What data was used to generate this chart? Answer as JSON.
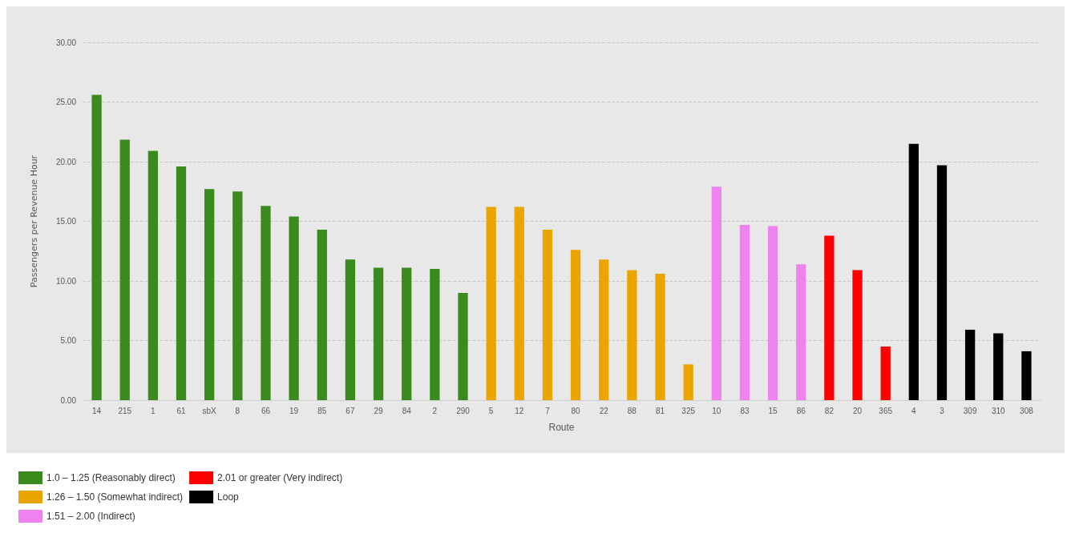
{
  "chart_data": {
    "type": "bar",
    "xlabel": "Route",
    "ylabel": "Passengers per Revenue Hour",
    "categories": [
      "14",
      "215",
      "1",
      "61",
      "sbX",
      "8",
      "66",
      "19",
      "85",
      "67",
      "29",
      "84",
      "2",
      "290",
      "5",
      "12",
      "7",
      "80",
      "22",
      "88",
      "81",
      "325",
      "10",
      "83",
      "15",
      "86",
      "82",
      "20",
      "365",
      "4",
      "3",
      "309",
      "310",
      "308"
    ],
    "series": [
      {
        "name": "1.0 – 1.25 (Reasonably direct)",
        "color": "#3a8a1e",
        "values": [
          25.6,
          21.85,
          20.9,
          19.6,
          17.7,
          17.5,
          16.3,
          15.4,
          14.3,
          11.8,
          11.1,
          11.1,
          11.0,
          9.0,
          null,
          null,
          null,
          null,
          null,
          null,
          null,
          null,
          null,
          null,
          null,
          null,
          null,
          null,
          null,
          null,
          null,
          null,
          null,
          null
        ]
      },
      {
        "name": "1.26 – 1.50 (Somewhat indirect)",
        "color": "#eaa500",
        "values": [
          null,
          null,
          null,
          null,
          null,
          null,
          null,
          null,
          null,
          null,
          null,
          null,
          null,
          null,
          16.2,
          16.2,
          14.3,
          12.6,
          11.8,
          10.9,
          10.6,
          3.0,
          null,
          null,
          null,
          null,
          null,
          null,
          null,
          null,
          null,
          null,
          null,
          null
        ]
      },
      {
        "name": "1.51 – 2.00 (Indirect)",
        "color": "#ee82ee",
        "values": [
          null,
          null,
          null,
          null,
          null,
          null,
          null,
          null,
          null,
          null,
          null,
          null,
          null,
          null,
          null,
          null,
          null,
          null,
          null,
          null,
          null,
          null,
          17.9,
          14.7,
          14.6,
          11.4,
          null,
          null,
          null,
          null,
          null,
          null,
          null,
          null
        ]
      },
      {
        "name": "2.01 or greater (Very indirect)",
        "color": "#ff0000",
        "values": [
          null,
          null,
          null,
          null,
          null,
          null,
          null,
          null,
          null,
          null,
          null,
          null,
          null,
          null,
          null,
          null,
          null,
          null,
          null,
          null,
          null,
          null,
          null,
          null,
          null,
          null,
          13.8,
          10.9,
          4.5,
          null,
          null,
          null,
          null,
          null
        ]
      },
      {
        "name": "Loop",
        "color": "#000000",
        "values": [
          null,
          null,
          null,
          null,
          null,
          null,
          null,
          null,
          null,
          null,
          null,
          null,
          null,
          null,
          null,
          null,
          null,
          null,
          null,
          null,
          null,
          null,
          null,
          null,
          null,
          null,
          null,
          null,
          null,
          21.5,
          19.7,
          5.9,
          5.6,
          4.1
        ]
      }
    ],
    "ylim": [
      0,
      30
    ],
    "yticks": [
      {
        "value": 0,
        "label": "0.00"
      },
      {
        "value": 5,
        "label": "5.00"
      },
      {
        "value": 10,
        "label": "10.00"
      },
      {
        "value": 15,
        "label": "15.00"
      },
      {
        "value": 20,
        "label": "20.00"
      },
      {
        "value": 25,
        "label": "25.00"
      },
      {
        "value": 30,
        "label": "30.00"
      }
    ],
    "grid": "y",
    "legend": "bottom left"
  }
}
